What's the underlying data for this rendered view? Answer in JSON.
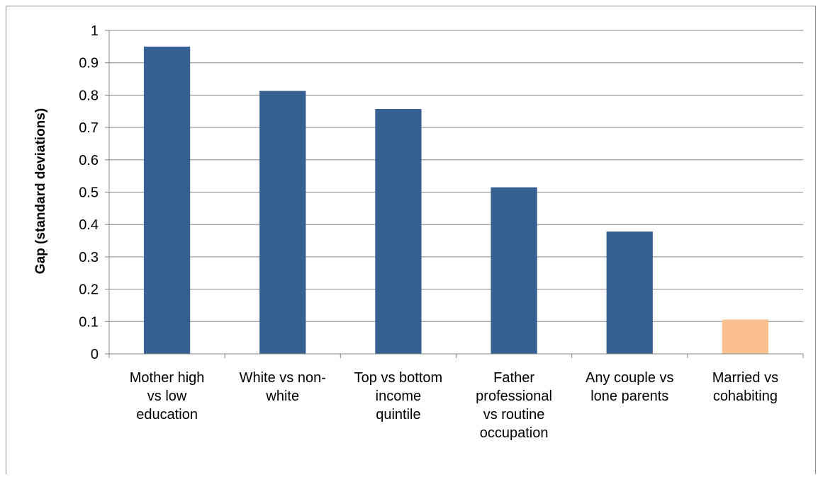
{
  "chart_data": {
    "type": "bar",
    "title": "",
    "xlabel": "",
    "ylabel": "Gap (standard deviations)",
    "ylim": [
      0,
      1
    ],
    "ytick_step": 0.1,
    "yticks": [
      "0",
      "0.1",
      "0.2",
      "0.3",
      "0.4",
      "0.5",
      "0.6",
      "0.7",
      "0.8",
      "0.9",
      "1"
    ],
    "grid": true,
    "legend": "none",
    "categories": [
      [
        "Mother high",
        "vs low",
        "education"
      ],
      [
        "White vs non-",
        "white"
      ],
      [
        "Top vs bottom",
        "income",
        "quintile"
      ],
      [
        "Father",
        "professional",
        "vs routine",
        "occupation"
      ],
      [
        "Any couple vs",
        "lone parents"
      ],
      [
        "Married vs",
        "cohabiting"
      ]
    ],
    "values": [
      0.95,
      0.813,
      0.757,
      0.515,
      0.378,
      0.106
    ],
    "bar_colors": [
      "#376092",
      "#376092",
      "#376092",
      "#376092",
      "#376092",
      "#FAC090"
    ]
  }
}
